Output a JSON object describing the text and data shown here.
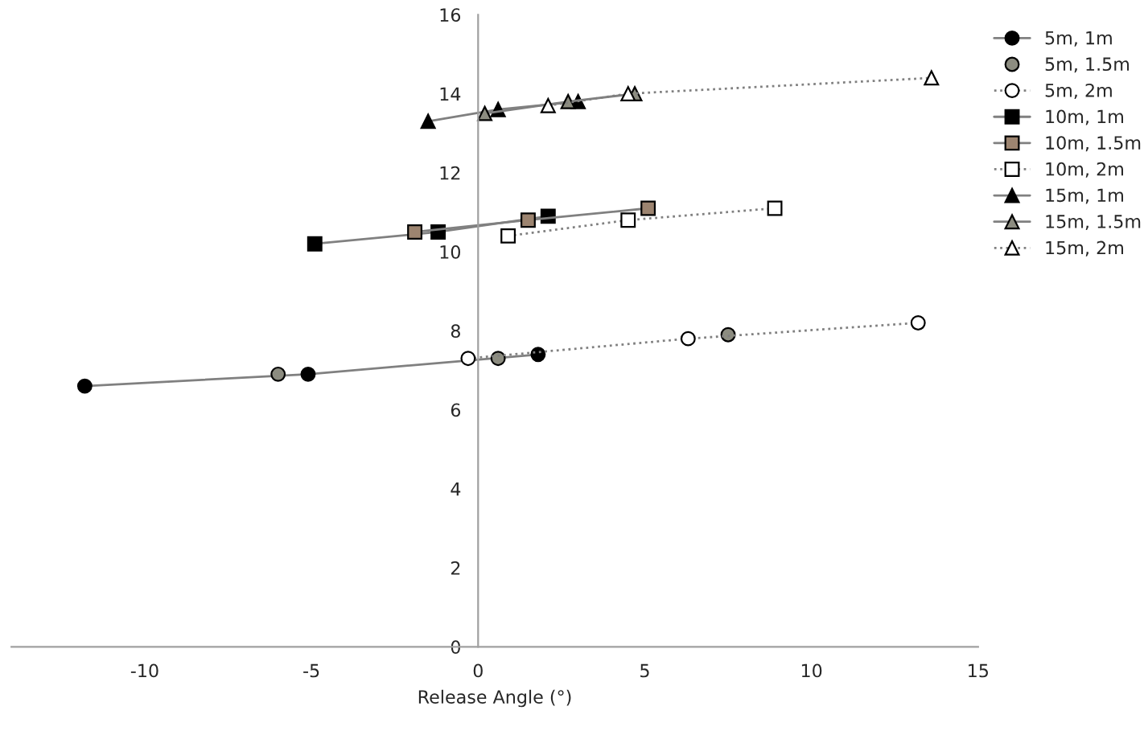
{
  "chart_data": {
    "type": "line",
    "xlabel": "Release Angle (°)",
    "xlim": [
      -14,
      15
    ],
    "xticks": [
      -10,
      -5,
      0,
      5,
      10,
      15
    ],
    "ylim": [
      0,
      16
    ],
    "yticks": [
      0,
      2,
      4,
      6,
      8,
      10,
      12,
      14,
      16
    ],
    "grid": false,
    "legend": "right",
    "series": [
      {
        "name": "5m, 1m",
        "color": "#000000",
        "marker": "circle",
        "line_style": "solid",
        "x": [
          -11.8,
          -5.1,
          1.8
        ],
        "values": [
          6.6,
          6.9,
          7.4
        ]
      },
      {
        "name": "5m, 1.5m",
        "type": "scatter",
        "color": "#8c8c80",
        "marker": "circle",
        "x": [
          -6.0,
          0.6,
          7.5
        ],
        "values": [
          6.9,
          7.3,
          7.9
        ]
      },
      {
        "name": "5m, 2m",
        "color": "#ffffff",
        "marker": "circle",
        "line_style": "dotted",
        "x": [
          -0.3,
          6.3,
          13.2
        ],
        "values": [
          7.3,
          7.8,
          8.2
        ]
      },
      {
        "name": "10m, 1m",
        "color": "#000000",
        "marker": "square",
        "line_style": "solid",
        "x": [
          -4.9,
          -1.2,
          2.1
        ],
        "values": [
          10.2,
          10.5,
          10.9
        ]
      },
      {
        "name": "10m, 1.5m",
        "color": "#9c8470",
        "marker": "square",
        "line_style": "solid",
        "x": [
          -1.9,
          1.5,
          5.1
        ],
        "values": [
          10.5,
          10.8,
          11.1
        ]
      },
      {
        "name": "10m, 2m",
        "color": "#ffffff",
        "marker": "square",
        "line_style": "dotted",
        "x": [
          0.9,
          4.5,
          8.9
        ],
        "values": [
          10.4,
          10.8,
          11.1
        ]
      },
      {
        "name": "15m, 1m",
        "color": "#000000",
        "marker": "triangle",
        "line_style": "solid",
        "x": [
          -1.5,
          0.6,
          3.0
        ],
        "values": [
          13.3,
          13.6,
          13.8
        ]
      },
      {
        "name": "15m, 1.5m",
        "color": "#8c8c80",
        "marker": "triangle",
        "line_style": "solid",
        "x": [
          0.2,
          2.7,
          4.7
        ],
        "values": [
          13.5,
          13.8,
          14.0
        ]
      },
      {
        "name": "15m, 2m",
        "color": "#ffffff",
        "marker": "triangle",
        "line_style": "dotted",
        "x": [
          2.1,
          4.5,
          13.6
        ],
        "values": [
          13.7,
          14.0,
          14.4
        ]
      }
    ]
  }
}
